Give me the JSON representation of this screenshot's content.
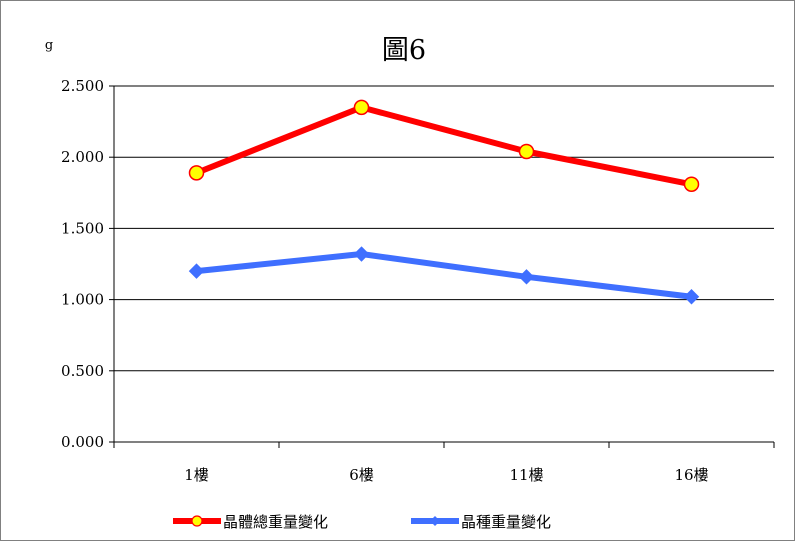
{
  "chart_data": {
    "type": "line",
    "title": "圖6",
    "ylabel": "g",
    "xlabel": "",
    "categories": [
      "1樓",
      "6樓",
      "11樓",
      "16樓"
    ],
    "ylim": [
      0,
      2.5
    ],
    "yticks": [
      "0.000",
      "0.500",
      "1.000",
      "1.500",
      "2.000",
      "2.500"
    ],
    "grid": true,
    "legend_position": "bottom",
    "series": [
      {
        "name": "晶體總重量變化",
        "values": [
          1.89,
          2.35,
          2.04,
          1.81
        ],
        "color": "#ff0000",
        "marker": "circle",
        "marker_fill": "#ffff00"
      },
      {
        "name": "晶種重量變化",
        "values": [
          1.2,
          1.32,
          1.16,
          1.02
        ],
        "color": "#3f6fff",
        "marker": "diamond",
        "marker_fill": "#3f6fff"
      }
    ]
  }
}
